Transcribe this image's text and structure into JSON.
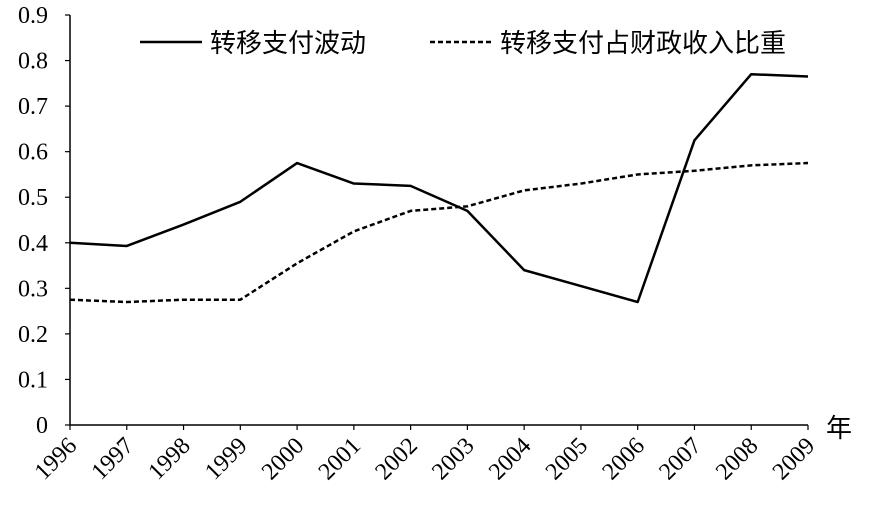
{
  "chart_data": {
    "type": "line",
    "title": "",
    "xlabel": "年",
    "ylabel": "",
    "x": [
      "1996",
      "1997",
      "1998",
      "1999",
      "2000",
      "2001",
      "2002",
      "2003",
      "2004",
      "2005",
      "2006",
      "2007",
      "2008",
      "2009"
    ],
    "ylim": [
      0,
      0.9
    ],
    "yticks": [
      "0",
      "0.1",
      "0.2",
      "0.3",
      "0.4",
      "0.5",
      "0.6",
      "0.7",
      "0.8",
      "0.9"
    ],
    "grid": false,
    "legend_position": "top",
    "series": [
      {
        "name": "转移支付波动",
        "style": "solid",
        "color": "#000000",
        "values": [
          0.4,
          0.393,
          0.44,
          0.49,
          0.575,
          0.53,
          0.525,
          0.47,
          0.34,
          0.305,
          0.27,
          0.625,
          0.77,
          0.765
        ]
      },
      {
        "name": "转移支付占财政收入比重",
        "style": "dashed",
        "color": "#000000",
        "values": [
          0.275,
          0.27,
          0.275,
          0.275,
          0.355,
          0.425,
          0.47,
          0.48,
          0.515,
          0.53,
          0.55,
          0.558,
          0.57,
          0.575
        ]
      }
    ]
  }
}
